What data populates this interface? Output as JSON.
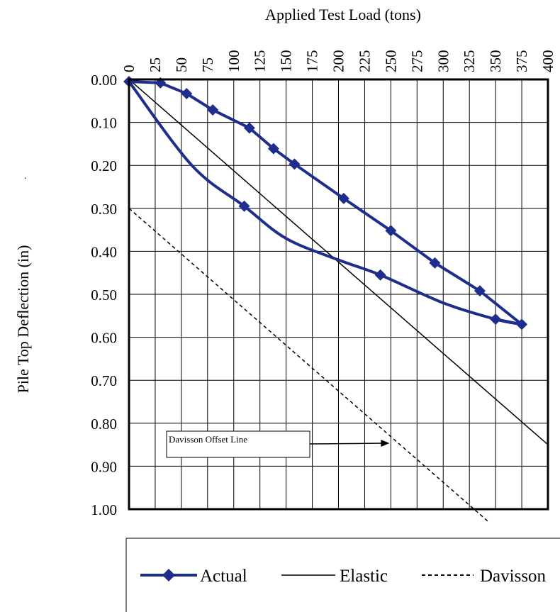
{
  "chart_data": {
    "type": "line",
    "xlabel": "Applied Test Load (tons)",
    "ylabel": "Pile Top Deflection  (in)",
    "stray_mark": ".",
    "xlim": [
      0,
      400
    ],
    "ylim": [
      0,
      1.0
    ],
    "y_inverted": true,
    "x_axis_position": "top",
    "x_ticks": [
      0,
      25,
      50,
      75,
      100,
      125,
      150,
      175,
      200,
      225,
      250,
      275,
      300,
      325,
      350,
      375,
      400
    ],
    "y_ticks": [
      0.0,
      0.1,
      0.2,
      0.3,
      0.4,
      0.5,
      0.6,
      0.7,
      0.8,
      0.9,
      1.0
    ],
    "y_tick_labels": [
      "0.00",
      "0.10",
      "0.20",
      "0.30",
      "0.40",
      "0.50",
      "0.60",
      "0.70",
      "0.80",
      "0.90",
      "1.00"
    ],
    "grid": true,
    "legend_position": "bottom",
    "series": [
      {
        "name": "Actual",
        "style": "line-with-diamond-markers",
        "color": "#1f2e8c",
        "x": [
          0,
          30,
          55,
          80,
          115,
          138,
          158,
          205,
          250,
          292,
          335,
          375,
          350
        ],
        "y": [
          0.005,
          0.008,
          0.033,
          0.071,
          0.113,
          0.161,
          0.197,
          0.277,
          0.352,
          0.427,
          0.492,
          0.57,
          0.558
        ],
        "smooth_return": {
          "x": [
            375,
            350,
            300,
            240,
            200,
            150,
            110,
            60,
            0
          ],
          "y": [
            0.57,
            0.558,
            0.52,
            0.455,
            0.42,
            0.37,
            0.295,
            0.2,
            0.005
          ]
        },
        "markers": {
          "x": [
            0,
            30,
            55,
            80,
            115,
            138,
            158,
            205,
            250,
            292,
            335,
            375,
            350,
            240,
            110
          ],
          "y": [
            0.005,
            0.008,
            0.033,
            0.071,
            0.113,
            0.161,
            0.197,
            0.277,
            0.352,
            0.427,
            0.492,
            0.57,
            0.558,
            0.455,
            0.295
          ]
        }
      },
      {
        "name": "Elastic",
        "style": "solid-thin",
        "color": "#000000",
        "x": [
          0,
          400
        ],
        "y": [
          0.0,
          0.85
        ]
      },
      {
        "name": "Davisson",
        "style": "dashed-thin",
        "color": "#000000",
        "x": [
          0,
          400
        ],
        "y": [
          0.3,
          1.15
        ]
      }
    ],
    "annotations": [
      {
        "text": "Davisson Offset Line",
        "arrow_to": {
          "x": 250,
          "y": 0.84
        }
      }
    ]
  }
}
